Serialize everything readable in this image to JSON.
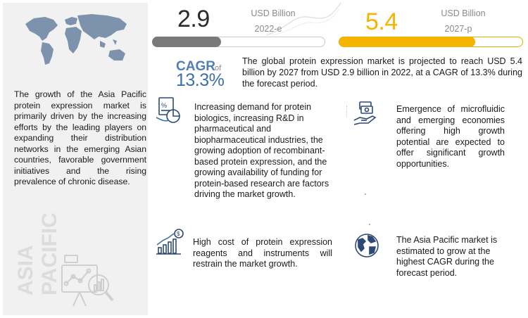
{
  "market": {
    "value_2022": "2.9",
    "value_2027": "5.4",
    "unit": "USD Billion",
    "year_2022": "2022-e",
    "year_2027": "2027-p",
    "bar_2022_fraction": 0.4,
    "bar_2027_fraction": 0.74
  },
  "cagr": {
    "label": "CAGR",
    "of": "of",
    "value": "13.3%"
  },
  "summary": "The global protein expression market is projected to reach USD 5.4 billion by 2027 from USD 2.9 billion in 2022, at a CAGR of 13.3% during the forecast period.",
  "left": {
    "text": "The growth of the Asia Pacific protein expression market is primarily driven by the increasing efforts by the leading players on expanding their distribution networks in the emerging Asian countries, favorable government initiatives and the rising prevalence of chronic disease.",
    "region_word1": "ASIA",
    "region_word2": "PACIFIC"
  },
  "drivers": {
    "text": "Increasing demand for protein biologics, increasing R&D in pharmaceutical and biopharmaceutical industries, the growing adoption of recombinant-based protein expression, and the growing availability of funding for protein-based research are factors driving the market growth."
  },
  "opportunities": {
    "text": "Emergence of microfluidic and emerging economies offering high growth potential are expected to offer significant growth opportunities."
  },
  "restraints": {
    "text": "High cost of protein expression reagents and instruments will restrain the market growth."
  },
  "region": {
    "text": "The Asia Pacific market is estimated to grow at the highest CAGR during the forecast period."
  },
  "colors": {
    "accent_yellow": "#f5b400",
    "accent_blue": "#3d6fab",
    "icon_navy": "#2e4a74",
    "bar_grey": "#7a7a7a"
  }
}
